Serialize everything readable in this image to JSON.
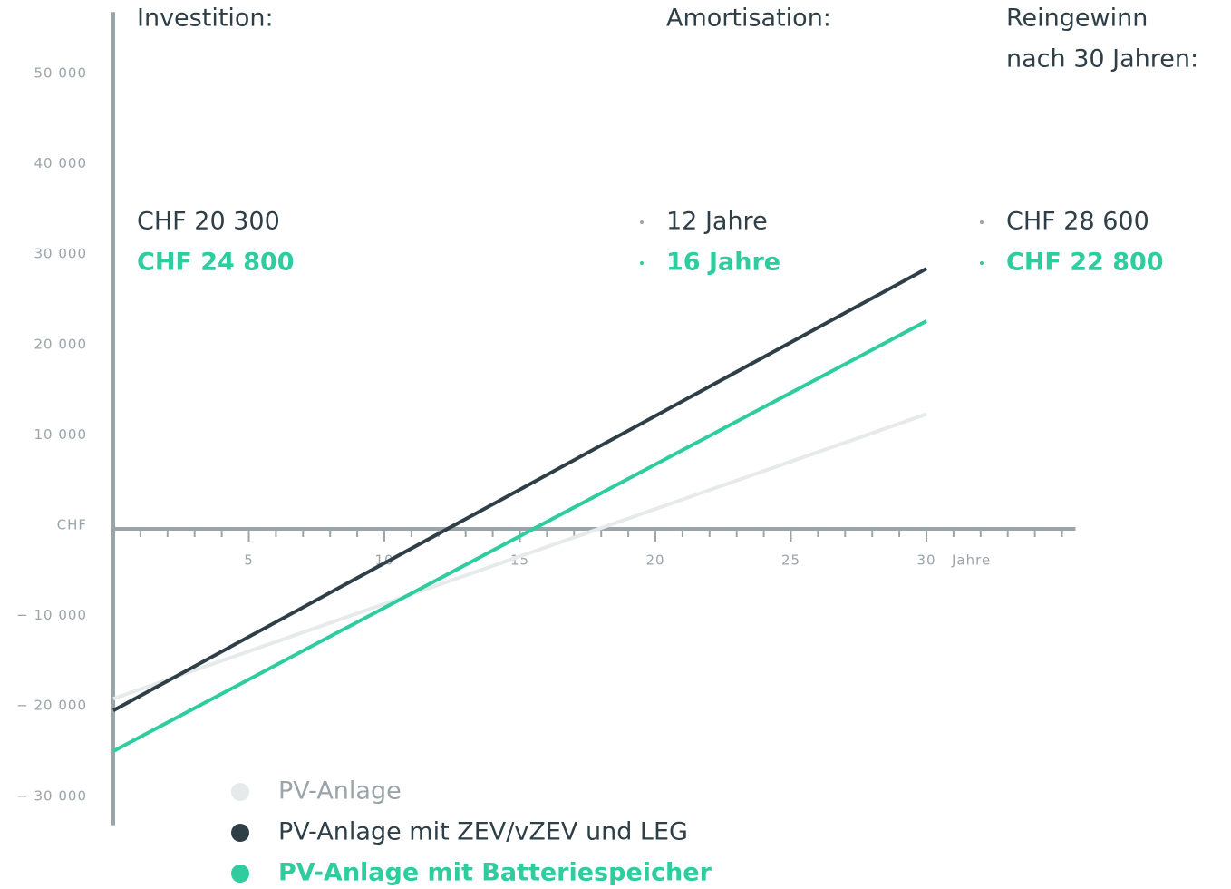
{
  "chart_data": {
    "type": "line",
    "x": [
      0,
      30
    ],
    "series": [
      {
        "name": "PV-Anlage",
        "color": "#e6eaeb",
        "values": [
          -19000,
          12500
        ]
      },
      {
        "name": "PV-Anlage mit ZEV/vZEV und LEG",
        "color": "#2f3f48",
        "values": [
          -20300,
          28600
        ]
      },
      {
        "name": "PV-Anlage mit Batteriespeicher",
        "color": "#2ecc9f",
        "values": [
          -24800,
          22800
        ]
      }
    ],
    "xlim": [
      0,
      35.5
    ],
    "ylim": [
      -33000,
      57000
    ],
    "xticks": [
      5,
      10,
      15,
      20,
      25,
      30
    ],
    "xminorticks": [
      1,
      2,
      3,
      4,
      5,
      6,
      7,
      8,
      9,
      10,
      11,
      12,
      13,
      14,
      15,
      16,
      17,
      18,
      19,
      20,
      21,
      22,
      23,
      24,
      25,
      26,
      27,
      28,
      29,
      30,
      31,
      32,
      33,
      34,
      35
    ],
    "yticks": [
      {
        "value": 50000,
        "label": "50 000"
      },
      {
        "value": 40000,
        "label": "40 000"
      },
      {
        "value": 30000,
        "label": "30 000"
      },
      {
        "value": 20000,
        "label": "20 000"
      },
      {
        "value": 10000,
        "label": "10 000"
      },
      {
        "value": 0,
        "label": "CHF"
      },
      {
        "value": -10000,
        "label": "− 10 000"
      },
      {
        "value": -20000,
        "label": "− 20 000"
      },
      {
        "value": -30000,
        "label": "− 30 000"
      }
    ],
    "x_label": "Jahre",
    "summary": {
      "headers": [
        [
          "Investition:"
        ],
        [
          "Amortisation:"
        ],
        [
          "Reingewinn",
          "nach 30 Jahren:"
        ]
      ],
      "rows": [
        [
          "CHF 20 300",
          "12 Jahre",
          "CHF 28 600"
        ],
        [
          "CHF 24 800",
          "16 Jahre",
          "CHF 22 800"
        ]
      ]
    }
  }
}
